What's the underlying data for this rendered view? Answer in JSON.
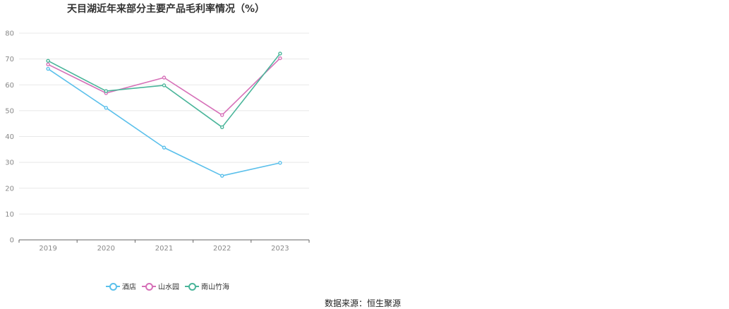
{
  "chart_data": {
    "type": "line",
    "title": "天目湖近年来部分主要产品毛利率情况（%）",
    "categories": [
      "2019",
      "2020",
      "2021",
      "2022",
      "2023"
    ],
    "series": [
      {
        "name": "酒店",
        "color": "#5bc0eb",
        "values": [
          66.2,
          51.1,
          35.7,
          24.8,
          29.8
        ]
      },
      {
        "name": "山水园",
        "color": "#d670b8",
        "values": [
          67.9,
          56.8,
          62.8,
          48.3,
          70.3
        ]
      },
      {
        "name": "南山竹海",
        "color": "#4ab59a",
        "values": [
          69.3,
          57.6,
          59.8,
          43.6,
          72.1
        ]
      }
    ],
    "xlabel": "",
    "ylabel": "",
    "ylim": [
      0,
      80
    ],
    "yticks": [
      0,
      10,
      20,
      30,
      40,
      50,
      60,
      70,
      80
    ],
    "grid": true,
    "legend": "bottom"
  },
  "source": "数据来源：恒生聚源"
}
